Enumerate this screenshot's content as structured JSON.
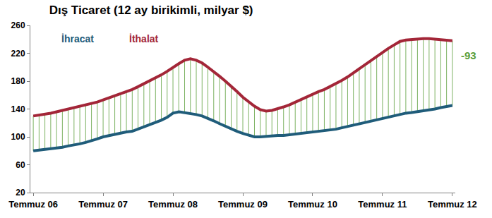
{
  "chart_data": {
    "type": "line",
    "title": "Dış Ticaret (12 ay birikimli, milyar $)",
    "categories": [
      "Temmuz 06",
      null,
      null,
      null,
      null,
      null,
      null,
      null,
      null,
      null,
      null,
      null,
      "Temmuz 07",
      null,
      null,
      null,
      null,
      null,
      null,
      null,
      null,
      null,
      null,
      null,
      "Temmuz 08",
      null,
      null,
      null,
      null,
      null,
      null,
      null,
      null,
      null,
      null,
      null,
      "Temmuz 09",
      null,
      null,
      null,
      null,
      null,
      null,
      null,
      null,
      null,
      null,
      null,
      "Temmuz 10",
      null,
      null,
      null,
      null,
      null,
      null,
      null,
      null,
      null,
      null,
      null,
      "Temmuz 11",
      null,
      null,
      null,
      null,
      null,
      null,
      null,
      null,
      null,
      null,
      null,
      "Temmuz 12"
    ],
    "series": [
      {
        "name": "İhracat",
        "color": "#1f5c7a",
        "values": [
          80,
          81,
          82,
          82,
          84,
          85,
          87,
          88,
          90,
          92,
          94,
          97,
          100,
          102,
          104,
          106,
          107,
          108,
          111,
          114,
          117,
          120,
          124,
          128,
          134,
          136,
          135,
          134,
          132,
          130,
          127,
          123,
          119,
          115,
          112,
          108,
          105,
          102,
          100,
          100,
          101,
          101,
          102,
          102,
          103,
          104,
          105,
          106,
          107,
          108,
          109,
          110,
          111,
          113,
          115,
          117,
          119,
          121,
          123,
          125,
          127,
          129,
          131,
          133,
          134,
          135,
          136,
          138,
          139,
          140,
          142,
          144,
          145
        ]
      },
      {
        "name": "İthalat",
        "color": "#a32638",
        "values": [
          130,
          131,
          133,
          134,
          136,
          138,
          140,
          142,
          144,
          146,
          148,
          150,
          153,
          156,
          158,
          161,
          164,
          168,
          172,
          176,
          180,
          184,
          189,
          194,
          200,
          205,
          210,
          212,
          210,
          206,
          200,
          194,
          187,
          180,
          173,
          165,
          157,
          150,
          144,
          139,
          137,
          138,
          140,
          143,
          146,
          150,
          154,
          158,
          162,
          165,
          168,
          172,
          176,
          181,
          186,
          192,
          198,
          204,
          210,
          216,
          222,
          227,
          232,
          237,
          239,
          240,
          240,
          241,
          241,
          240,
          239,
          238,
          238
        ]
      }
    ],
    "annotations": [
      {
        "text": "-93"
      }
    ],
    "ylim": [
      20,
      260
    ],
    "yticks": [
      20,
      60,
      100,
      140,
      180,
      220,
      260
    ],
    "grid": false
  }
}
